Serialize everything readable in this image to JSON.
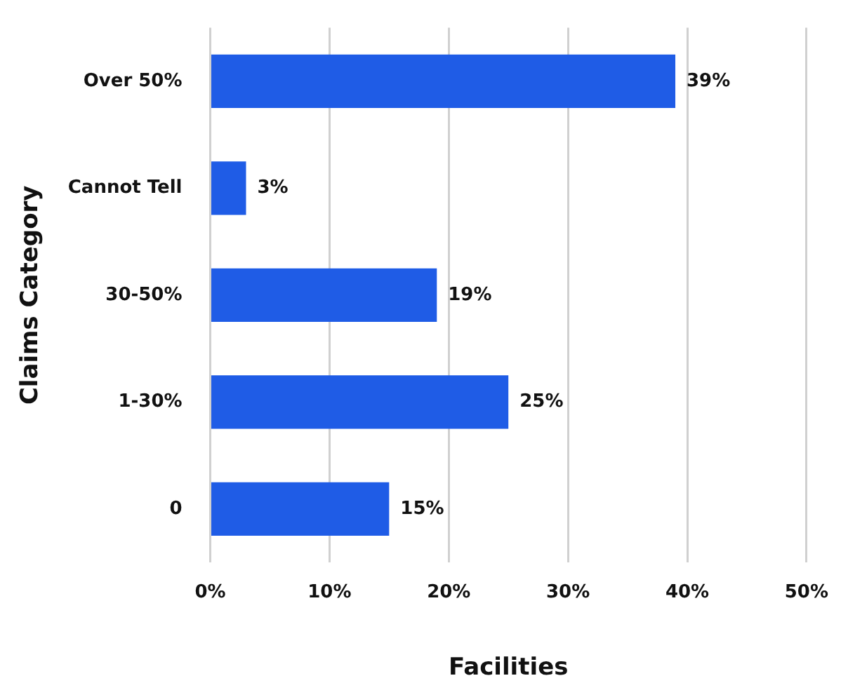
{
  "chart_data": {
    "type": "bar",
    "orientation": "horizontal",
    "xlabel": "Facilities",
    "ylabel": "Claims Category",
    "categories": [
      "Over 50%",
      "Cannot Tell",
      "30-50%",
      "1-30%",
      "0"
    ],
    "values": [
      39,
      3,
      19,
      25,
      15
    ],
    "value_labels": [
      "39%",
      "3%",
      "19%",
      "25%",
      "15%"
    ],
    "color": "#1f5ce6",
    "xlim": [
      0,
      50
    ],
    "xticks": [
      {
        "value": 0,
        "label": "0%"
      },
      {
        "value": 10,
        "label": "10%"
      },
      {
        "value": 20,
        "label": "20%"
      },
      {
        "value": 30,
        "label": "30%"
      },
      {
        "value": 40,
        "label": "40%"
      },
      {
        "value": 50,
        "label": "50%"
      }
    ],
    "grid": "x",
    "legend": false
  }
}
